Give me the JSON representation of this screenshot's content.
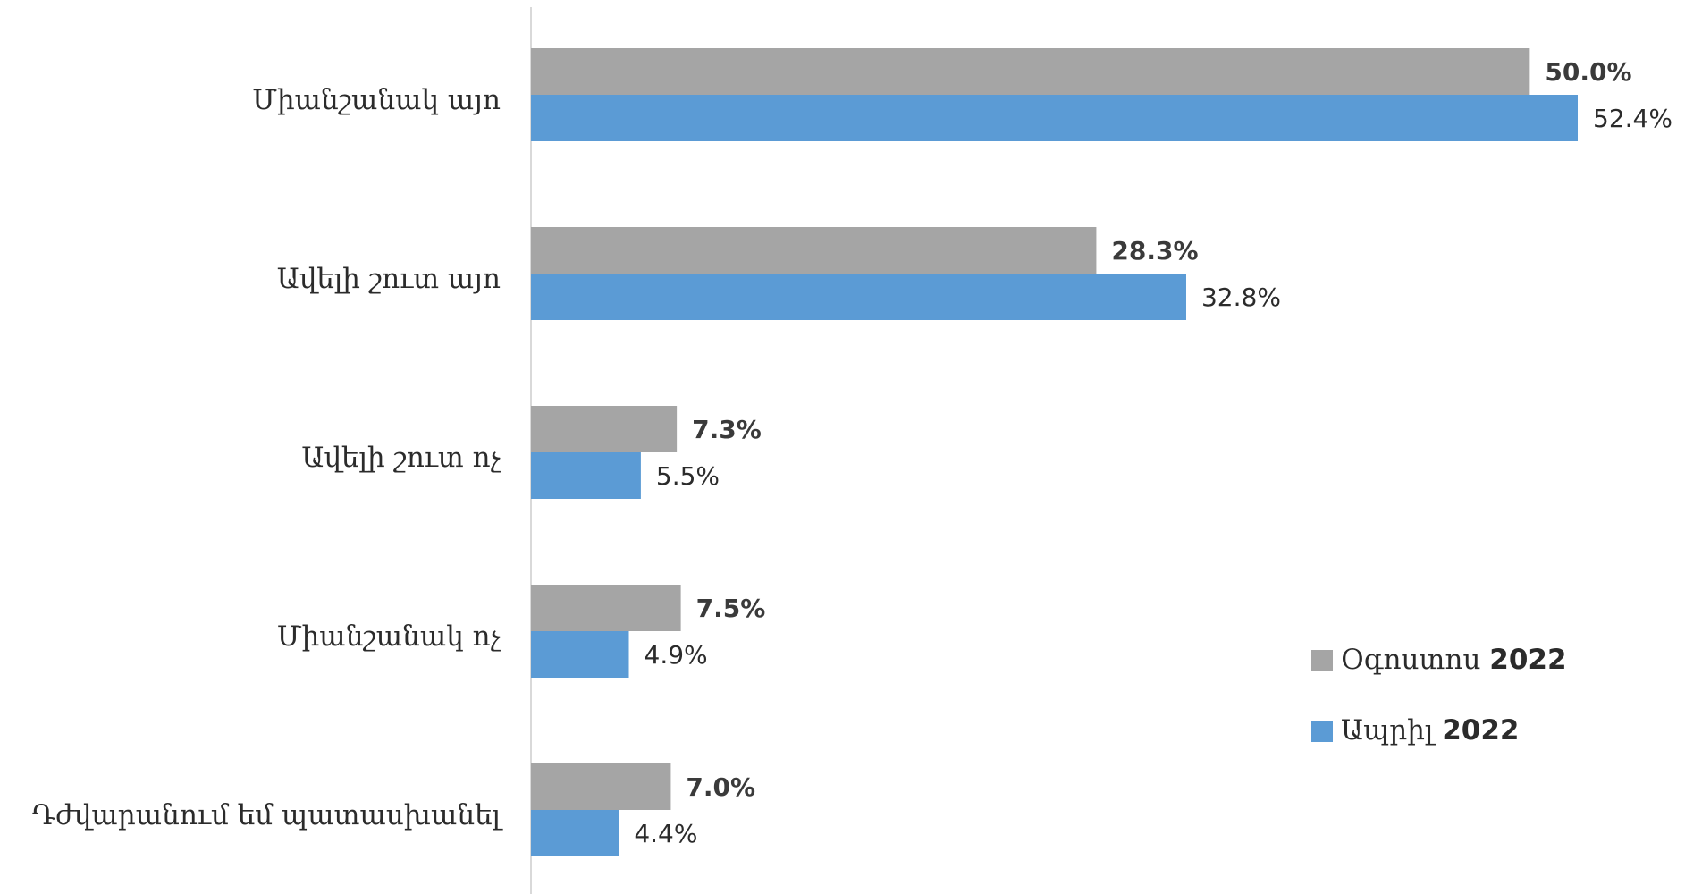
{
  "chart_data": {
    "type": "bar",
    "orientation": "horizontal",
    "categories": [
      "Միանշանակ այո",
      "Ավելի շուտ այո",
      "Ավելի շուտ ոչ",
      "Միանշանակ ոչ",
      "Դժվարանում եմ պատասխանել"
    ],
    "series": [
      {
        "name": "Օգոստոս 2022",
        "color": "#a5a5a5",
        "values": [
          50.0,
          28.3,
          7.3,
          7.5,
          7.0
        ],
        "labels": [
          "50.0%",
          "28.3%",
          "7.3%",
          "7.5%",
          "7.0%"
        ],
        "label_bold": true
      },
      {
        "name": "Ապրիլ 2022",
        "color": "#5b9bd5",
        "values": [
          52.4,
          32.8,
          5.5,
          4.9,
          4.4
        ],
        "labels": [
          "52.4%",
          "32.8%",
          "5.5%",
          "4.9%",
          "4.4%"
        ],
        "label_bold": false
      }
    ],
    "legend": [
      {
        "name_text": "Օգոստոս",
        "name_year": "2022",
        "color": "#a5a5a5"
      },
      {
        "name_text": "Ապրիլ",
        "name_year": "2022",
        "color": "#5b9bd5"
      }
    ],
    "legend_position": "right",
    "xlim": [
      0,
      60
    ],
    "grid": false,
    "axis_color": "#d9d9d9"
  }
}
